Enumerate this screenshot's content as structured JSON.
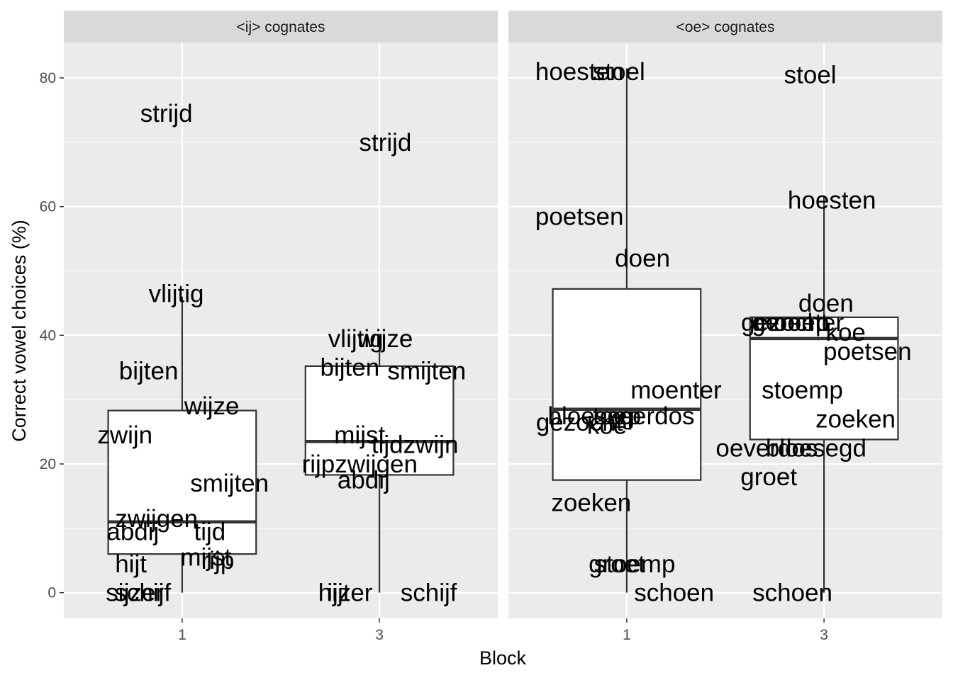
{
  "chart_data": {
    "type": "boxplot",
    "xlabel": "Block",
    "ylabel": "Correct vowel choices (%)",
    "ylim": [
      -4,
      85.5
    ],
    "yticks": [
      0,
      20,
      40,
      60,
      80
    ],
    "grid": true,
    "panels": [
      {
        "title": "<ij> cognates",
        "categories": [
          "1",
          "3"
        ],
        "boxes": [
          {
            "x": "1",
            "lower_whisker": 0,
            "q1": 6,
            "median": 11,
            "q3": 28.3,
            "upper_whisker": 46
          },
          {
            "x": "3",
            "lower_whisker": 0,
            "q1": 18.3,
            "median": 23.5,
            "q3": 35.2,
            "upper_whisker": 40
          }
        ],
        "labels": [
          {
            "block": "1",
            "dx": -0.08,
            "y": 74.5,
            "text": "strijd"
          },
          {
            "block": "1",
            "dx": -0.03,
            "y": 46.5,
            "text": "vlijtig"
          },
          {
            "block": "1",
            "dx": -0.17,
            "y": 34.5,
            "text": "bijten"
          },
          {
            "block": "1",
            "dx": 0.15,
            "y": 29,
            "text": "wijze"
          },
          {
            "block": "1",
            "dx": -0.29,
            "y": 24.5,
            "text": "zwijn"
          },
          {
            "block": "1",
            "dx": 0.24,
            "y": 17,
            "text": "smijten"
          },
          {
            "block": "1",
            "dx": -0.13,
            "y": 11.5,
            "text": "zwijgen"
          },
          {
            "block": "1",
            "dx": -0.25,
            "y": 9.5,
            "text": "abdij"
          },
          {
            "block": "1",
            "dx": 0.14,
            "y": 9.5,
            "text": "tijd"
          },
          {
            "block": "1",
            "dx": -0.26,
            "y": 4.5,
            "text": "hijt"
          },
          {
            "block": "1",
            "dx": 0.12,
            "y": 5.5,
            "text": "mijst"
          },
          {
            "block": "1",
            "dx": 0.18,
            "y": 5,
            "text": "rijp"
          },
          {
            "block": "1",
            "dx": -0.24,
            "y": 0,
            "text": "sijzer"
          },
          {
            "block": "1",
            "dx": -0.2,
            "y": 0,
            "text": "schijf"
          },
          {
            "block": "3",
            "dx": 0.03,
            "y": 70,
            "text": "strijd"
          },
          {
            "block": "3",
            "dx": -0.12,
            "y": 39.5,
            "text": "vlijtig"
          },
          {
            "block": "3",
            "dx": 0.03,
            "y": 39.5,
            "text": "wijze"
          },
          {
            "block": "3",
            "dx": -0.15,
            "y": 35,
            "text": "bijten"
          },
          {
            "block": "3",
            "dx": 0.24,
            "y": 34.5,
            "text": "smijten"
          },
          {
            "block": "3",
            "dx": -0.1,
            "y": 24.5,
            "text": "mijst"
          },
          {
            "block": "3",
            "dx": 0.18,
            "y": 23,
            "text": "tijdzwijn"
          },
          {
            "block": "3",
            "dx": -0.1,
            "y": 20,
            "text": "rijpzwijgen"
          },
          {
            "block": "3",
            "dx": -0.08,
            "y": 17.5,
            "text": "abdij"
          },
          {
            "block": "3",
            "dx": -0.23,
            "y": 0,
            "text": "hijt"
          },
          {
            "block": "3",
            "dx": -0.15,
            "y": 0,
            "text": "ijzer"
          },
          {
            "block": "3",
            "dx": 0.25,
            "y": 0,
            "text": "schijf"
          }
        ]
      },
      {
        "title": "<oe> cognates",
        "categories": [
          "1",
          "3"
        ],
        "boxes": [
          {
            "x": "1",
            "lower_whisker": 0,
            "q1": 17.5,
            "median": 28.5,
            "q3": 47.2,
            "upper_whisker": 81.5
          },
          {
            "x": "3",
            "lower_whisker": 0,
            "q1": 23.8,
            "median": 39.5,
            "q3": 42.8,
            "upper_whisker": 61.5
          }
        ],
        "labels": [
          {
            "block": "1",
            "dx": -0.24,
            "y": 81,
            "text": "hoesten"
          },
          {
            "block": "1",
            "dx": -0.04,
            "y": 81,
            "text": "stoel"
          },
          {
            "block": "1",
            "dx": -0.24,
            "y": 58.5,
            "text": "poetsen"
          },
          {
            "block": "1",
            "dx": 0.08,
            "y": 52,
            "text": "doen"
          },
          {
            "block": "1",
            "dx": 0.25,
            "y": 31.5,
            "text": "moenter"
          },
          {
            "block": "1",
            "dx": -0.18,
            "y": 27.5,
            "text": "bloeseg"
          },
          {
            "block": "1",
            "dx": 0.12,
            "y": 27.5,
            "text": "zeerdos"
          },
          {
            "block": "1",
            "dx": -0.05,
            "y": 27.5,
            "text": "toep"
          },
          {
            "block": "1",
            "dx": -0.24,
            "y": 26.5,
            "text": "gezocht"
          },
          {
            "block": "1",
            "dx": -0.1,
            "y": 26,
            "text": "koe"
          },
          {
            "block": "1",
            "dx": -0.18,
            "y": 14,
            "text": "zoeken"
          },
          {
            "block": "1",
            "dx": -0.05,
            "y": 4.5,
            "text": "groet"
          },
          {
            "block": "1",
            "dx": 0.04,
            "y": 4.5,
            "text": "stoemp"
          },
          {
            "block": "1",
            "dx": 0.24,
            "y": 0,
            "text": "schoen"
          },
          {
            "block": "3",
            "dx": -0.07,
            "y": 80.5,
            "text": "stoel"
          },
          {
            "block": "3",
            "dx": 0.04,
            "y": 61,
            "text": "hoesten"
          },
          {
            "block": "3",
            "dx": 0.01,
            "y": 45,
            "text": "doen"
          },
          {
            "block": "3",
            "dx": -0.2,
            "y": 42,
            "text": "gezocht"
          },
          {
            "block": "3",
            "dx": -0.13,
            "y": 42,
            "text": "moenter"
          },
          {
            "block": "3",
            "dx": -0.17,
            "y": 42,
            "text": "geroep"
          },
          {
            "block": "3",
            "dx": 0.11,
            "y": 40.5,
            "text": "koe"
          },
          {
            "block": "3",
            "dx": 0.22,
            "y": 37.5,
            "text": "poetsen"
          },
          {
            "block": "3",
            "dx": -0.11,
            "y": 31.5,
            "text": "stoemp"
          },
          {
            "block": "3",
            "dx": 0.16,
            "y": 27,
            "text": "zoeken"
          },
          {
            "block": "3",
            "dx": -0.29,
            "y": 22.5,
            "text": "oeverdos"
          },
          {
            "block": "3",
            "dx": -0.04,
            "y": 22.5,
            "text": "bloesegd"
          },
          {
            "block": "3",
            "dx": -0.28,
            "y": 18,
            "text": "groet"
          },
          {
            "block": "3",
            "dx": -0.16,
            "y": 0,
            "text": "schoen"
          }
        ]
      }
    ]
  }
}
